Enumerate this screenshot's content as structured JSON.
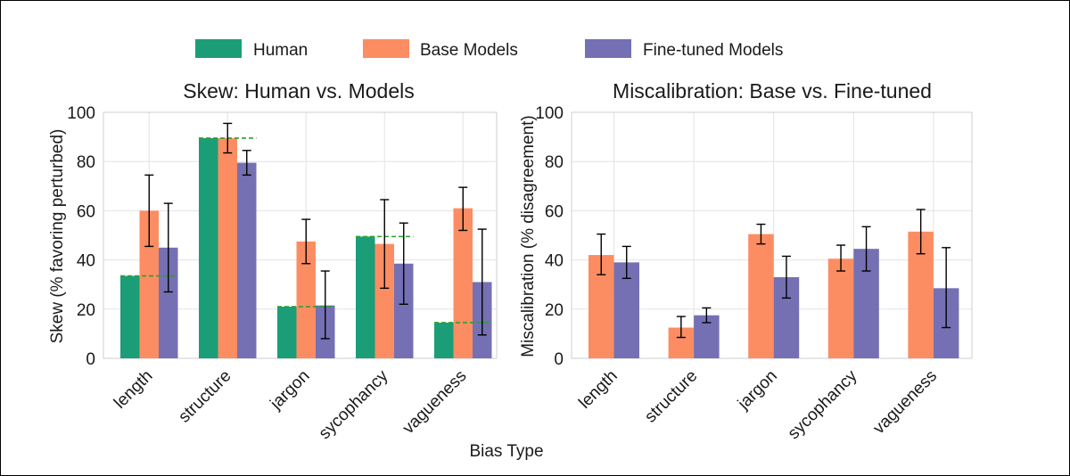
{
  "legend": {
    "items": [
      {
        "label": "Human",
        "color": "#1b9e77"
      },
      {
        "label": "Base Models",
        "color": "#fc8d62"
      },
      {
        "label": "Fine-tuned Models",
        "color": "#7570b3"
      }
    ]
  },
  "xlabel": "Bias Type",
  "chart_data": [
    {
      "type": "bar",
      "title": "Skew: Human vs. Models",
      "ylabel": "Skew (% favoring perturbed)",
      "xlabel": "Bias Type",
      "ylim": [
        0,
        100
      ],
      "yticks": [
        0,
        20,
        40,
        60,
        80,
        100
      ],
      "grid": true,
      "categories": [
        "length",
        "structure",
        "jargon",
        "sycophancy",
        "vagueness"
      ],
      "series": [
        {
          "name": "Human",
          "color": "#1b9e77",
          "values": [
            33.5,
            89.5,
            21,
            49.5,
            14.5
          ],
          "err_low": [
            0,
            0,
            0,
            0,
            0
          ],
          "err_high": [
            0,
            0,
            0,
            0,
            0
          ],
          "show_err": false
        },
        {
          "name": "Base Models",
          "color": "#fc8d62",
          "values": [
            60,
            89.5,
            47.5,
            46.5,
            61
          ],
          "err_low": [
            45.5,
            83.5,
            38.5,
            28.5,
            52
          ],
          "err_high": [
            74.5,
            95.5,
            56.5,
            64.5,
            69.5
          ],
          "show_err": true
        },
        {
          "name": "Fine-tuned Models",
          "color": "#7570b3",
          "values": [
            45,
            79.5,
            21.5,
            38.5,
            31
          ],
          "err_low": [
            27,
            74.5,
            8,
            22,
            9.5
          ],
          "err_high": [
            63,
            84.5,
            35.5,
            55,
            52.5
          ],
          "show_err": true
        }
      ],
      "reference_lines": {
        "name": "Human",
        "color": "#2ca02c",
        "style": "dashed",
        "values": [
          33.5,
          89.5,
          21,
          49.5,
          14.5
        ]
      }
    },
    {
      "type": "bar",
      "title": "Miscalibration: Base vs. Fine-tuned",
      "ylabel": "Miscalibration (% disagreement)",
      "ylim": [
        0,
        100
      ],
      "yticks": [
        0,
        20,
        40,
        60,
        80,
        100
      ],
      "grid": true,
      "categories": [
        "length",
        "structure",
        "jargon",
        "sycophancy",
        "vagueness"
      ],
      "series": [
        {
          "name": "Base Models",
          "color": "#fc8d62",
          "values": [
            42,
            12.5,
            50.5,
            40.5,
            51.5
          ],
          "err_low": [
            34,
            8.5,
            46.5,
            35.5,
            42.5
          ],
          "err_high": [
            50.5,
            17,
            54.5,
            46,
            60.5
          ],
          "show_err": true
        },
        {
          "name": "Fine-tuned Models",
          "color": "#7570b3",
          "values": [
            39,
            17.5,
            33,
            44.5,
            28.5
          ],
          "err_low": [
            32.5,
            14.5,
            24.5,
            35.5,
            12.5
          ],
          "err_high": [
            45.5,
            20.5,
            41.5,
            53.5,
            45
          ],
          "show_err": true
        }
      ]
    }
  ]
}
